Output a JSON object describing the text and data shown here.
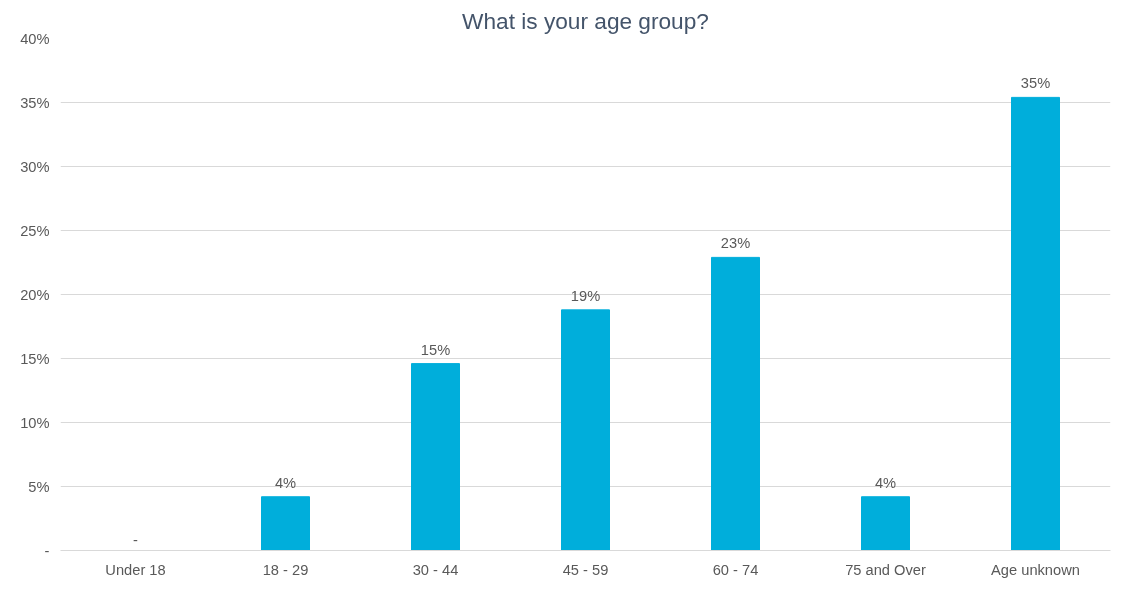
{
  "chart_data": {
    "type": "bar",
    "title": "What is your age group?",
    "categories": [
      "Under 18",
      "18 - 29",
      "30 - 44",
      "45 - 59",
      "60 - 74",
      "75 and Over",
      "Age unknown"
    ],
    "values": [
      0,
      4.2,
      14.6,
      18.8,
      22.9,
      4.2,
      35.4
    ],
    "value_labels": [
      "-",
      "4%",
      "15%",
      "19%",
      "23%",
      "4%",
      "35%"
    ],
    "color": "#00aedb",
    "ylim": [
      0,
      40
    ],
    "yticks": [
      {
        "value": 0,
        "label": "-"
      },
      {
        "value": 5,
        "label": "5%"
      },
      {
        "value": 10,
        "label": "10%"
      },
      {
        "value": 15,
        "label": "15%"
      },
      {
        "value": 20,
        "label": "20%"
      },
      {
        "value": 25,
        "label": "25%"
      },
      {
        "value": 30,
        "label": "30%"
      },
      {
        "value": 35,
        "label": "35%"
      },
      {
        "value": 40,
        "label": "40%"
      }
    ],
    "grid": "y"
  }
}
